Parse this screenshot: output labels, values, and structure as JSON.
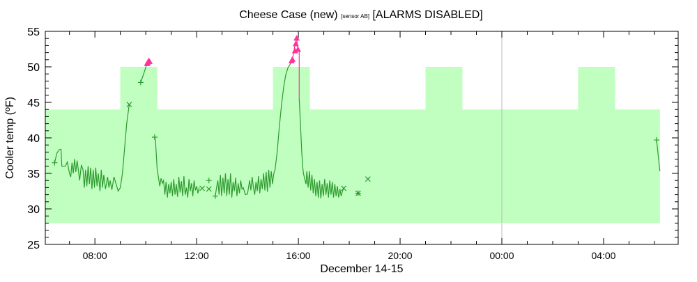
{
  "chart_data": {
    "type": "line",
    "title": "Cheese Case (new)",
    "title_sensor": "[sensor AB]",
    "title_status": "[ALARMS DISABLED]",
    "xlabel": "December 14-15",
    "ylabel": "Cooler temp (ºF)",
    "xlim": [
      "14 06:03",
      "15 06:56"
    ],
    "ylim": [
      25,
      55
    ],
    "x_ticks": [
      {
        "t": "14 08:00",
        "label": "08:00"
      },
      {
        "t": "14 12:00",
        "label": "12:00"
      },
      {
        "t": "14 16:00",
        "label": "16:00"
      },
      {
        "t": "14 20:00",
        "label": "20:00"
      },
      {
        "t": "15 00:00",
        "label": "00:00"
      },
      {
        "t": "15 04:00",
        "label": "04:00"
      }
    ],
    "y_ticks": [
      25,
      30,
      35,
      40,
      45,
      50,
      55
    ],
    "grid": false,
    "midnight_line": "15 00:00",
    "colors": {
      "band": "#c0ffc0",
      "line": "#2e9a2e",
      "alarm": "#ff3399",
      "midnight": "#bbbbbb"
    },
    "band": {
      "points": [
        [
          "14 06:03",
          28,
          44
        ],
        [
          "14 09:00",
          28,
          44
        ],
        [
          "14 09:00",
          28,
          50
        ],
        [
          "14 10:27",
          28,
          50
        ],
        [
          "14 10:27",
          28,
          44
        ],
        [
          "14 15:00",
          28,
          44
        ],
        [
          "14 15:00",
          28,
          50
        ],
        [
          "14 16:27",
          28,
          50
        ],
        [
          "14 16:27",
          28,
          44
        ],
        [
          "14 21:00",
          28,
          44
        ],
        [
          "14 21:00",
          28,
          50
        ],
        [
          "14 22:27",
          28,
          50
        ],
        [
          "14 22:27",
          28,
          44
        ],
        [
          "15 03:00",
          28,
          44
        ],
        [
          "15 03:00",
          28,
          50
        ],
        [
          "15 04:27",
          28,
          50
        ],
        [
          "15 04:27",
          28,
          44
        ],
        [
          "15 06:13",
          28,
          44
        ]
      ]
    },
    "series": [
      {
        "kind": "normal",
        "points": [
          [
            "14 06:25",
            36.5
          ],
          [
            "14 06:30",
            37.8
          ],
          [
            "14 06:35",
            38.3
          ],
          [
            "14 06:40",
            38.4
          ],
          [
            "14 06:42",
            36.0
          ],
          [
            "14 06:50",
            36.0
          ],
          [
            "14 06:55",
            36.6
          ],
          [
            "14 07:00",
            35.0
          ],
          [
            "14 07:03",
            34.5
          ],
          [
            "14 07:06",
            36.5
          ],
          [
            "14 07:09",
            35.0
          ],
          [
            "14 07:12",
            37.0
          ],
          [
            "14 07:15",
            35.2
          ],
          [
            "14 07:18",
            36.8
          ],
          [
            "14 07:21",
            35.5
          ],
          [
            "14 07:24",
            34.0
          ],
          [
            "14 07:28",
            36.2
          ],
          [
            "14 07:32",
            35.5
          ],
          [
            "14 07:35",
            33.0
          ],
          [
            "14 07:38",
            35.5
          ],
          [
            "14 07:41",
            33.2
          ],
          [
            "14 07:44",
            36.0
          ],
          [
            "14 07:47",
            33.5
          ],
          [
            "14 07:50",
            35.8
          ],
          [
            "14 07:53",
            32.8
          ],
          [
            "14 07:56",
            35.5
          ],
          [
            "14 07:59",
            33.0
          ],
          [
            "14 08:02",
            35.8
          ],
          [
            "14 08:05",
            33.2
          ],
          [
            "14 08:08",
            35.0
          ],
          [
            "14 08:12",
            32.5
          ],
          [
            "14 08:15",
            35.5
          ],
          [
            "14 08:18",
            33.0
          ],
          [
            "14 08:21",
            34.8
          ],
          [
            "14 08:25",
            32.8
          ],
          [
            "14 08:30",
            34.5
          ],
          [
            "14 08:33",
            33.0
          ],
          [
            "14 08:36",
            34.0
          ],
          [
            "14 08:40",
            32.7
          ],
          [
            "14 08:45",
            34.5
          ],
          [
            "14 08:50",
            33.5
          ],
          [
            "14 08:55",
            32.5
          ],
          [
            "14 09:00",
            33.0
          ],
          [
            "14 09:05",
            35.0
          ],
          [
            "14 09:10",
            38.5
          ],
          [
            "14 09:15",
            42.0
          ],
          [
            "14 09:21",
            44.7
          ]
        ]
      },
      {
        "kind": "normal",
        "points": [
          [
            "14 09:48",
            47.8
          ],
          [
            "14 09:55",
            49.0
          ],
          [
            "14 10:02",
            50.3
          ]
        ]
      },
      {
        "kind": "alarm",
        "points": [
          [
            "14 10:02",
            50.3
          ],
          [
            "14 10:04",
            50.5
          ],
          [
            "14 10:06",
            50.7
          ],
          [
            "14 10:08",
            50.9
          ],
          [
            "14 10:10",
            50.6
          ]
        ]
      },
      {
        "kind": "normal",
        "points": [
          [
            "14 10:21",
            40.1
          ],
          [
            "14 10:23",
            39.6
          ],
          [
            "14 10:25",
            37.5
          ],
          [
            "14 10:27",
            35.5
          ],
          [
            "14 10:30",
            34.4
          ],
          [
            "14 10:33",
            33.2
          ],
          [
            "14 10:36",
            34.3
          ],
          [
            "14 10:39",
            33.6
          ],
          [
            "14 10:42",
            34.0
          ],
          [
            "14 10:45",
            32.0
          ],
          [
            "14 10:48",
            33.8
          ],
          [
            "14 10:51",
            31.6
          ],
          [
            "14 10:54",
            33.5
          ],
          [
            "14 10:57",
            32.2
          ],
          [
            "14 11:00",
            33.8
          ],
          [
            "14 11:03",
            31.8
          ],
          [
            "14 11:06",
            34.2
          ],
          [
            "14 11:09",
            32.0
          ],
          [
            "14 11:12",
            33.5
          ],
          [
            "14 11:15",
            31.7
          ],
          [
            "14 11:18",
            34.5
          ],
          [
            "14 11:21",
            32.3
          ],
          [
            "14 11:24",
            33.9
          ],
          [
            "14 11:27",
            31.8
          ],
          [
            "14 11:30",
            34.6
          ],
          [
            "14 11:33",
            32.0
          ],
          [
            "14 11:36",
            33.0
          ],
          [
            "14 11:39",
            31.6
          ],
          [
            "14 11:42",
            34.2
          ],
          [
            "14 11:45",
            32.5
          ],
          [
            "14 11:48",
            33.6
          ],
          [
            "14 11:51",
            31.8
          ],
          [
            "14 11:54",
            34.0
          ],
          [
            "14 11:57",
            32.6
          ],
          [
            "14 12:00",
            33.2
          ],
          [
            "14 12:03",
            32.2
          ],
          [
            "14 12:06",
            33.0
          ]
        ]
      },
      {
        "kind": "normal",
        "points": [
          [
            "14 12:44",
            31.8
          ],
          [
            "14 12:47",
            33.0
          ],
          [
            "14 12:50",
            34.0
          ],
          [
            "14 12:53",
            32.0
          ],
          [
            "14 12:56",
            34.8
          ],
          [
            "14 12:59",
            31.8
          ],
          [
            "14 13:02",
            34.4
          ],
          [
            "14 13:05",
            32.2
          ],
          [
            "14 13:08",
            35.0
          ],
          [
            "14 13:11",
            31.8
          ],
          [
            "14 13:14",
            34.2
          ],
          [
            "14 13:17",
            32.0
          ],
          [
            "14 13:20",
            35.0
          ],
          [
            "14 13:23",
            31.6
          ],
          [
            "14 13:26",
            33.8
          ],
          [
            "14 13:29",
            32.5
          ],
          [
            "14 13:32",
            34.4
          ],
          [
            "14 13:35",
            31.8
          ],
          [
            "14 13:38",
            33.6
          ],
          [
            "14 13:41",
            32.2
          ],
          [
            "14 13:44",
            34.0
          ],
          [
            "14 13:47",
            32.8
          ],
          [
            "14 13:50",
            33.0
          ],
          [
            "14 13:55",
            32.0
          ],
          [
            "14 14:00",
            32.1
          ],
          [
            "14 14:05",
            34.0
          ],
          [
            "14 14:08",
            32.6
          ],
          [
            "14 14:11",
            34.5
          ],
          [
            "14 14:14",
            33.0
          ],
          [
            "14 14:17",
            32.0
          ],
          [
            "14 14:20",
            33.8
          ],
          [
            "14 14:23",
            32.5
          ],
          [
            "14 14:26",
            34.6
          ],
          [
            "14 14:29",
            32.2
          ],
          [
            "14 14:32",
            34.2
          ],
          [
            "14 14:35",
            32.8
          ],
          [
            "14 14:38",
            35.0
          ],
          [
            "14 14:41",
            32.6
          ],
          [
            "14 14:44",
            35.2
          ],
          [
            "14 14:47",
            32.4
          ],
          [
            "14 14:50",
            35.5
          ],
          [
            "14 14:53",
            33.0
          ],
          [
            "14 14:56",
            35.3
          ],
          [
            "14 14:59",
            33.5
          ],
          [
            "14 15:02",
            35.0
          ],
          [
            "14 15:05",
            35.5
          ],
          [
            "14 15:10",
            38.0
          ],
          [
            "14 15:15",
            41.5
          ],
          [
            "14 15:20",
            44.5
          ],
          [
            "14 15:25",
            47.0
          ],
          [
            "14 15:30",
            48.8
          ],
          [
            "14 15:35",
            49.8
          ],
          [
            "14 15:40",
            50.3
          ],
          [
            "14 15:44",
            50.8
          ]
        ]
      },
      {
        "kind": "alarm",
        "points": [
          [
            "14 15:44",
            50.8
          ],
          [
            "14 15:48",
            51.6
          ],
          [
            "14 15:52",
            53.2
          ],
          [
            "14 15:56",
            54.0
          ],
          [
            "14 15:59",
            52.3
          ],
          [
            "14 16:02",
            52.3
          ],
          [
            "14 16:02",
            45.5
          ]
        ]
      },
      {
        "kind": "normal",
        "points": [
          [
            "14 16:02",
            45.5
          ],
          [
            "14 16:04",
            43.0
          ],
          [
            "14 16:06",
            40.5
          ],
          [
            "14 16:08",
            38.0
          ],
          [
            "14 16:10",
            36.0
          ],
          [
            "14 16:12",
            35.0
          ],
          [
            "14 16:15",
            34.2
          ],
          [
            "14 16:18",
            33.5
          ],
          [
            "14 16:20",
            35.3
          ],
          [
            "14 16:23",
            33.0
          ],
          [
            "14 16:26",
            35.3
          ],
          [
            "14 16:29",
            32.6
          ],
          [
            "14 16:32",
            34.8
          ],
          [
            "14 16:35",
            32.2
          ],
          [
            "14 16:38",
            34.2
          ],
          [
            "14 16:41",
            31.8
          ],
          [
            "14 16:44",
            33.8
          ],
          [
            "14 16:47",
            31.6
          ],
          [
            "14 16:50",
            34.0
          ],
          [
            "14 16:53",
            31.5
          ],
          [
            "14 16:56",
            33.5
          ],
          [
            "14 16:59",
            31.8
          ],
          [
            "14 17:02",
            34.2
          ],
          [
            "14 17:05",
            32.0
          ],
          [
            "14 17:08",
            33.6
          ],
          [
            "14 17:11",
            31.6
          ],
          [
            "14 17:14",
            34.0
          ],
          [
            "14 17:17",
            32.0
          ],
          [
            "14 17:20",
            33.8
          ],
          [
            "14 17:23",
            31.6
          ],
          [
            "14 17:26",
            33.5
          ],
          [
            "14 17:29",
            31.8
          ],
          [
            "14 17:32",
            33.2
          ],
          [
            "14 17:35",
            31.6
          ],
          [
            "14 17:38",
            32.8
          ],
          [
            "14 17:41",
            31.8
          ],
          [
            "14 17:44",
            32.5
          ],
          [
            "14 17:47",
            32.9
          ]
        ]
      },
      {
        "kind": "normal",
        "points": [
          [
            "15 06:05",
            39.7
          ],
          [
            "15 06:13",
            35.3
          ]
        ]
      }
    ],
    "markers": {
      "plus": [
        [
          "14 06:25",
          36.5
        ],
        [
          "14 09:48",
          47.8
        ],
        [
          "14 10:21",
          40.1
        ],
        [
          "14 12:29",
          34.0
        ],
        [
          "14 12:44",
          31.8
        ],
        [
          "14 18:21",
          32.2
        ],
        [
          "15 06:05",
          39.7
        ]
      ],
      "cross": [
        [
          "14 09:21",
          44.7
        ],
        [
          "14 12:13",
          32.9
        ],
        [
          "14 12:29",
          32.8
        ],
        [
          "14 17:47",
          32.9
        ],
        [
          "14 18:21",
          32.2
        ],
        [
          "14 18:44",
          34.2
        ]
      ],
      "triangle": [
        [
          "14 10:03",
          50.4
        ],
        [
          "14 10:05",
          50.6
        ],
        [
          "14 10:07",
          50.8
        ],
        [
          "14 10:09",
          50.7
        ],
        [
          "14 15:44",
          50.8
        ],
        [
          "14 15:46",
          51.0
        ],
        [
          "14 15:52",
          52.2
        ],
        [
          "14 15:54",
          53.2
        ],
        [
          "14 15:56",
          54.0
        ],
        [
          "14 15:59",
          52.4
        ]
      ]
    }
  }
}
